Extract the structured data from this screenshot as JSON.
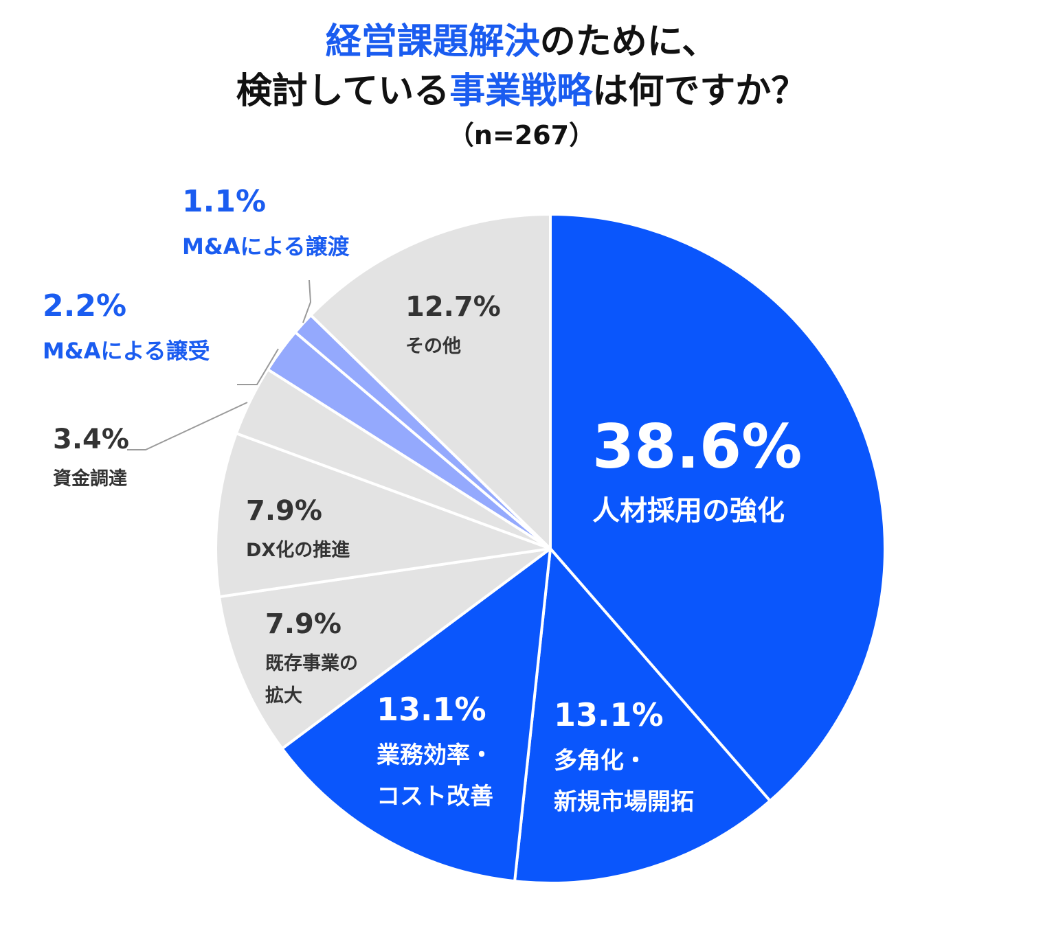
{
  "title": {
    "line1": {
      "blue": "経営課題解決",
      "black": "のために、"
    },
    "line2": {
      "black1": "検討している",
      "blue": "事業戦略",
      "black2": "は何ですか？"
    },
    "sample": "（n=267）"
  },
  "colors": {
    "primary_blue": "#0a56fc",
    "light_blue": "#94a9fd",
    "gray": "#e3e3e3",
    "label_blue": "#1a5cf0",
    "label_dark": "#333333",
    "white": "#ffffff"
  },
  "chart_data": {
    "type": "pie",
    "n": 267,
    "unit": "%",
    "start": "12 o'clock",
    "direction": "clockwise",
    "slices": [
      {
        "label": "人材採用の強化",
        "value": 38.6,
        "value_text": "38.6%",
        "color": "#0a56fc"
      },
      {
        "label": "多角化・新規市場開拓",
        "label_lines": [
          "多角化・",
          "新規市場開拓"
        ],
        "value": 13.1,
        "value_text": "13.1%",
        "color": "#0a56fc"
      },
      {
        "label": "業務効率・コスト改善",
        "label_lines": [
          "業務効率・",
          "コスト改善"
        ],
        "value": 13.1,
        "value_text": "13.1%",
        "color": "#0a56fc"
      },
      {
        "label": "既存事業の拡大",
        "label_lines": [
          "既存事業の",
          "拡大"
        ],
        "value": 7.9,
        "value_text": "7.9%",
        "color": "#e3e3e3"
      },
      {
        "label": "DX化の推進",
        "value": 7.9,
        "value_text": "7.9%",
        "color": "#e3e3e3"
      },
      {
        "label": "資金調達",
        "value": 3.4,
        "value_text": "3.4%",
        "color": "#e3e3e3"
      },
      {
        "label": "M&Aによる譲受",
        "value": 2.2,
        "value_text": "2.2%",
        "color": "#94a9fd"
      },
      {
        "label": "M&Aによる譲渡",
        "value": 1.1,
        "value_text": "1.1%",
        "color": "#94a9fd"
      },
      {
        "label": "その他",
        "value": 12.7,
        "value_text": "12.7%",
        "color": "#e3e3e3"
      }
    ]
  }
}
